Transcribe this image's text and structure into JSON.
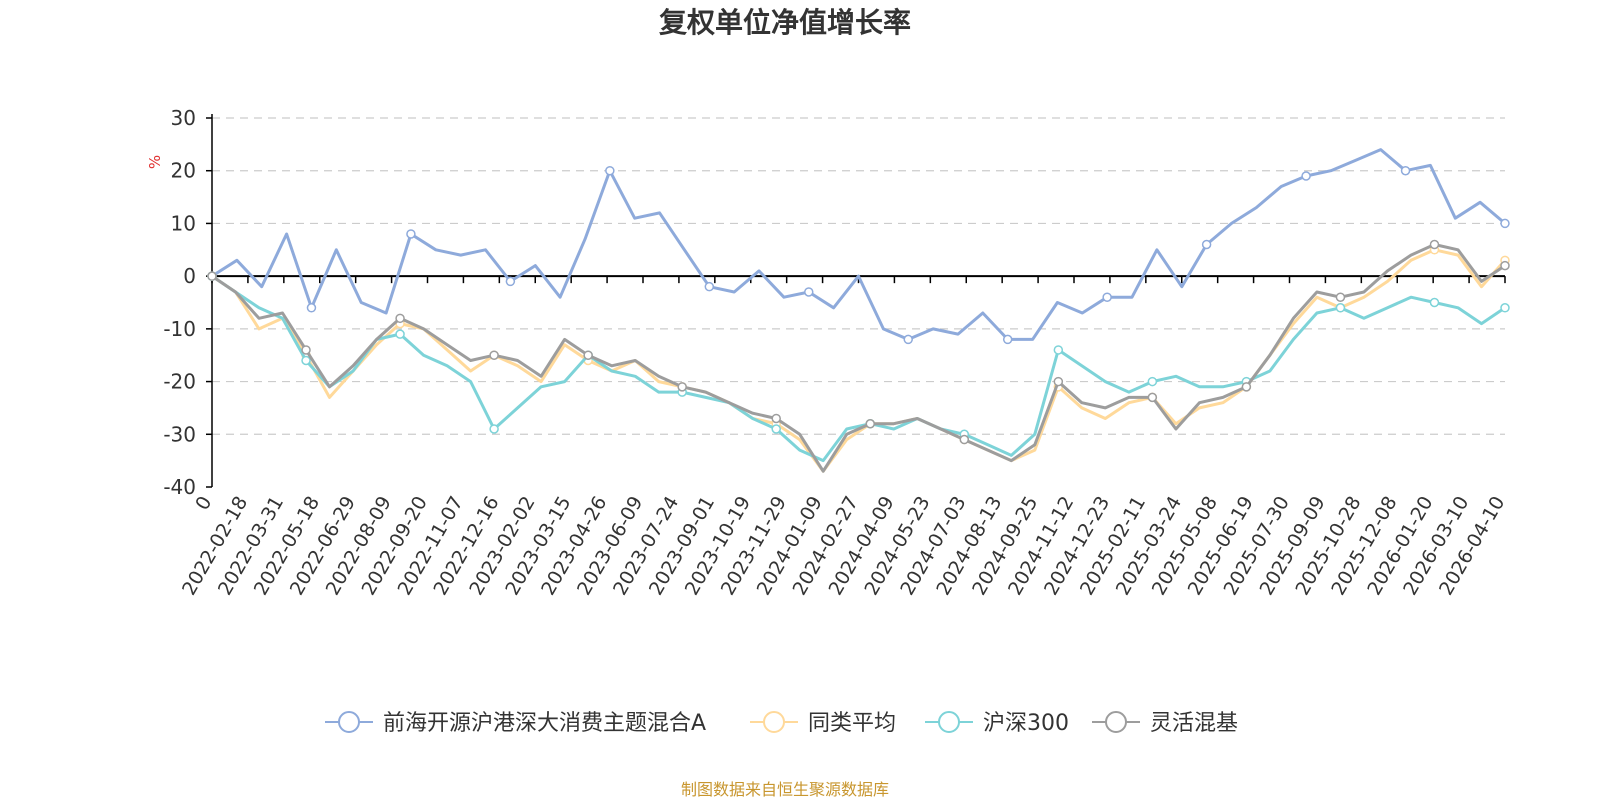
{
  "chart_data": {
    "type": "line",
    "title": "复权单位净值增长率",
    "ylabel": "%",
    "ylim": [
      -40,
      30
    ],
    "yticks": [
      30,
      20,
      10,
      0,
      -10,
      -20,
      -30,
      -40
    ],
    "grid": true,
    "legend_position": "bottom",
    "x_tick_labels": [
      "0",
      "2022-02-18",
      "2022-03-31",
      "2022-05-18",
      "2022-06-29",
      "2022-08-09",
      "2022-09-20",
      "2022-11-07",
      "2022-12-16",
      "2023-02-02",
      "2023-03-15",
      "2023-04-26",
      "2023-06-09",
      "2023-07-24",
      "2023-09-01",
      "2023-10-19",
      "2023-11-29",
      "2024-01-09",
      "2024-02-27",
      "2024-04-09",
      "2024-05-23",
      "2024-07-03",
      "2024-08-13",
      "2024-09-25",
      "2024-11-12",
      "2024-12-23",
      "2025-02-11",
      "2025-03-24",
      "2025-05-08",
      "2025-06-19",
      "2025-07-30",
      "2025-09-09",
      "2025-10-28",
      "2025-12-08",
      "2026-01-20",
      "2026-03-10",
      "2026-04-10"
    ],
    "series": [
      {
        "name": "前海开源沪港深大消费主题混合A",
        "color": "#8eaadb",
        "values": [
          0,
          3,
          -2,
          8,
          -6,
          5,
          -5,
          -7,
          8,
          5,
          4,
          5,
          -1,
          2,
          -4,
          7,
          20,
          11,
          12,
          5,
          -2,
          -3,
          1,
          -4,
          -3,
          -6,
          0,
          -10,
          -12,
          -10,
          -11,
          -7,
          -12,
          -12,
          -5,
          -7,
          -4,
          -4,
          5,
          -2,
          6,
          10,
          13,
          17,
          19,
          20,
          22,
          24,
          20,
          21,
          11,
          14,
          10
        ]
      },
      {
        "name": "同类平均",
        "color": "#ffd99a",
        "values": [
          0,
          -3,
          -10,
          -8,
          -15,
          -23,
          -18,
          -13,
          -9,
          -10,
          -14,
          -18,
          -15,
          -17,
          -20,
          -13,
          -16,
          -18,
          -16,
          -20,
          -21,
          -22,
          -24,
          -27,
          -28,
          -31,
          -37,
          -31,
          -28,
          -28,
          -27,
          -29,
          -31,
          -33,
          -35,
          -33,
          -21,
          -25,
          -27,
          -24,
          -23,
          -28,
          -25,
          -24,
          -21,
          -15,
          -9,
          -4,
          -6,
          -4,
          -1,
          3,
          5,
          4,
          -2,
          3
        ]
      },
      {
        "name": "沪深300",
        "color": "#7dd3d8",
        "values": [
          0,
          -3,
          -6,
          -8,
          -16,
          -21,
          -18,
          -12,
          -11,
          -15,
          -17,
          -20,
          -29,
          -25,
          -21,
          -20,
          -15,
          -18,
          -19,
          -22,
          -22,
          -23,
          -24,
          -27,
          -29,
          -33,
          -35,
          -29,
          -28,
          -29,
          -27,
          -29,
          -30,
          -32,
          -34,
          -30,
          -14,
          -17,
          -20,
          -22,
          -20,
          -19,
          -21,
          -21,
          -20,
          -18,
          -12,
          -7,
          -6,
          -8,
          -6,
          -4,
          -5,
          -6,
          -9,
          -6
        ]
      },
      {
        "name": "灵活混基",
        "color": "#9d9d9d",
        "values": [
          0,
          -3,
          -8,
          -7,
          -14,
          -21,
          -17,
          -12,
          -8,
          -10,
          -13,
          -16,
          -15,
          -16,
          -19,
          -12,
          -15,
          -17,
          -16,
          -19,
          -21,
          -22,
          -24,
          -26,
          -27,
          -30,
          -37,
          -30,
          -28,
          -28,
          -27,
          -29,
          -31,
          -33,
          -35,
          -32,
          -20,
          -24,
          -25,
          -23,
          -23,
          -29,
          -24,
          -23,
          -21,
          -15,
          -8,
          -3,
          -4,
          -3,
          1,
          4,
          6,
          5,
          -1,
          2
        ]
      }
    ]
  },
  "footer": {
    "source": "制图数据来自恒生聚源数据库"
  },
  "style": {
    "axis_color": "#000000",
    "grid_color": "#cccccc",
    "unit_color": "#e03030",
    "text_color": "#333333",
    "source_color": "#c8962e"
  }
}
